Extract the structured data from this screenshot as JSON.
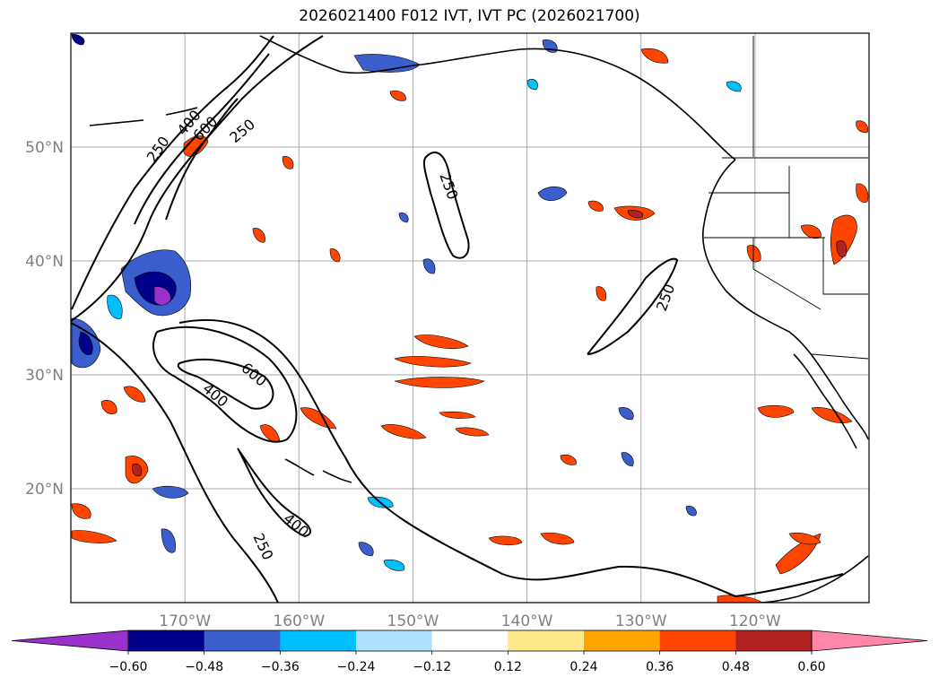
{
  "title": "2026021400 F012 IVT, IVT PC (2026021700)",
  "map": {
    "lon_range": [
      -180,
      -110
    ],
    "lat_range": [
      10,
      60
    ],
    "lat_ticks": [
      {
        "value": 20,
        "label": "20°N"
      },
      {
        "value": 30,
        "label": "30°N"
      },
      {
        "value": 40,
        "label": "40°N"
      },
      {
        "value": 50,
        "label": "50°N"
      }
    ],
    "lon_ticks": [
      {
        "value": -170,
        "label": "170°W"
      },
      {
        "value": -160,
        "label": "160°W"
      },
      {
        "value": -150,
        "label": "150°W"
      },
      {
        "value": -140,
        "label": "140°W"
      },
      {
        "value": -130,
        "label": "130°W"
      },
      {
        "value": -120,
        "label": "120°W"
      }
    ],
    "grid": true,
    "contour_labels": [
      "250",
      "400",
      "600",
      "250",
      "250",
      "250",
      "600",
      "400",
      "400",
      "250"
    ]
  },
  "colorbar": {
    "ticks": [
      "−0.60",
      "−0.48",
      "−0.36",
      "−0.24",
      "−0.12",
      "0.12",
      "0.24",
      "0.36",
      "0.48",
      "0.60"
    ],
    "colors": [
      "#9932cc",
      "#00008b",
      "#3a5fcd",
      "#00bfff",
      "#b0e2ff",
      "#ffffff",
      "#ffe88a",
      "#ffa500",
      "#ff4500",
      "#b22222",
      "#ff88aa"
    ]
  }
}
